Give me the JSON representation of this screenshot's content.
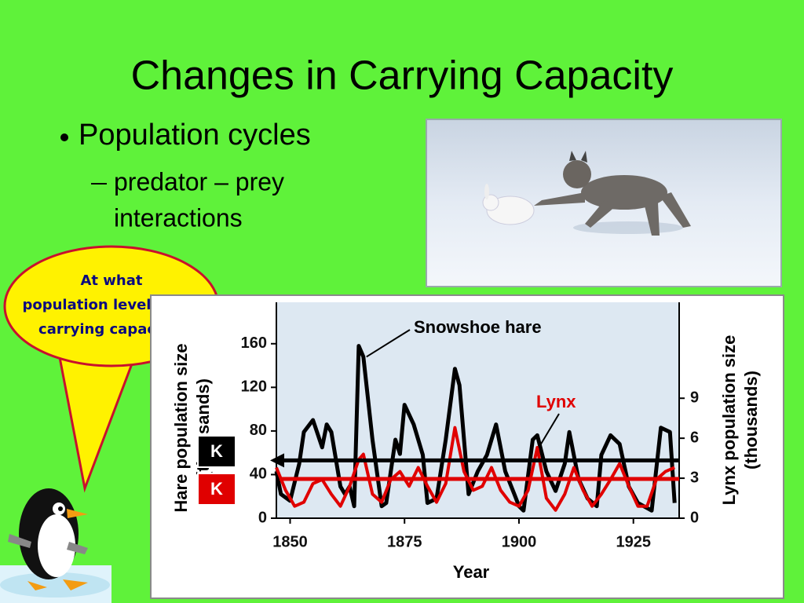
{
  "slide": {
    "title": "Changes in Carrying Capacity",
    "bullet": "Population cycles",
    "subitem_lines": [
      "predator – prey",
      "interactions"
    ],
    "callout_lines": [
      "At what",
      "population level is the",
      "carrying capacity?"
    ]
  },
  "chart_data": {
    "type": "line",
    "x_label": "Year",
    "y_label": [
      "Hare population size",
      "(thousands)"
    ],
    "y2_label": [
      "Lynx population size",
      "(thousands)"
    ],
    "xlim": [
      1847,
      1935
    ],
    "xticks": [
      1850,
      1875,
      1900,
      1925
    ],
    "ylim": [
      0,
      198
    ],
    "yticks": [
      0,
      40,
      80,
      120,
      160
    ],
    "y2lim": [
      0,
      16.2
    ],
    "y2ticks": [
      0,
      3,
      6,
      9
    ],
    "series": [
      {
        "name": "Snowshoe hare",
        "color": "#000000",
        "x": [
          1847,
          1848,
          1850,
          1852,
          1853,
          1855,
          1857,
          1858,
          1859,
          1861,
          1862,
          1863,
          1864,
          1865,
          1866,
          1868,
          1870,
          1871,
          1873,
          1874,
          1875,
          1877,
          1879,
          1880,
          1882,
          1884,
          1886,
          1887,
          1889,
          1891,
          1893,
          1895,
          1897,
          1899,
          1900,
          1901,
          1903,
          1904,
          1906,
          1908,
          1910,
          1911,
          1913,
          1915,
          1917,
          1918,
          1920,
          1922,
          1924,
          1926,
          1929,
          1931,
          1933,
          1934
        ],
        "values": [
          43,
          22,
          16,
          50,
          79,
          90,
          65,
          86,
          79,
          29,
          22,
          29,
          11,
          158,
          148,
          72,
          11,
          14,
          72,
          59,
          104,
          86,
          58,
          14,
          18,
          72,
          137,
          122,
          22,
          43,
          58,
          86,
          43,
          22,
          11,
          7,
          72,
          76,
          43,
          25,
          50,
          79,
          36,
          18,
          11,
          58,
          76,
          68,
          29,
          14,
          7,
          83,
          79,
          14
        ]
      },
      {
        "name": "Lynx",
        "color": "#e00000",
        "axis": "y2",
        "x": [
          1847,
          1849,
          1851,
          1853,
          1855,
          1857,
          1859,
          1861,
          1863,
          1865,
          1866,
          1868,
          1870,
          1872,
          1874,
          1876,
          1878,
          1880,
          1882,
          1884,
          1886,
          1888,
          1890,
          1892,
          1894,
          1896,
          1898,
          1900,
          1902,
          1904,
          1906,
          1908,
          1910,
          1912,
          1914,
          1916,
          1918,
          1920,
          1922,
          1924,
          1926,
          1928,
          1930,
          1932,
          1934
        ],
        "values": [
          3.8,
          2.1,
          0.9,
          1.2,
          2.6,
          2.9,
          1.8,
          0.9,
          2.4,
          4.4,
          4.8,
          1.8,
          1.2,
          2.9,
          3.5,
          2.4,
          3.8,
          2.4,
          1.2,
          2.6,
          6.8,
          3.5,
          2.1,
          2.4,
          3.8,
          2.1,
          1.2,
          0.9,
          2.1,
          5.3,
          1.5,
          0.6,
          1.8,
          3.8,
          2.1,
          0.9,
          1.8,
          2.9,
          4.1,
          2.4,
          0.9,
          0.9,
          2.9,
          3.5,
          3.8
        ]
      }
    ],
    "k_lines": [
      {
        "label": "K",
        "value": 53,
        "color": "#000000"
      },
      {
        "label": "K",
        "value": 36,
        "color": "#e00000"
      }
    ]
  }
}
